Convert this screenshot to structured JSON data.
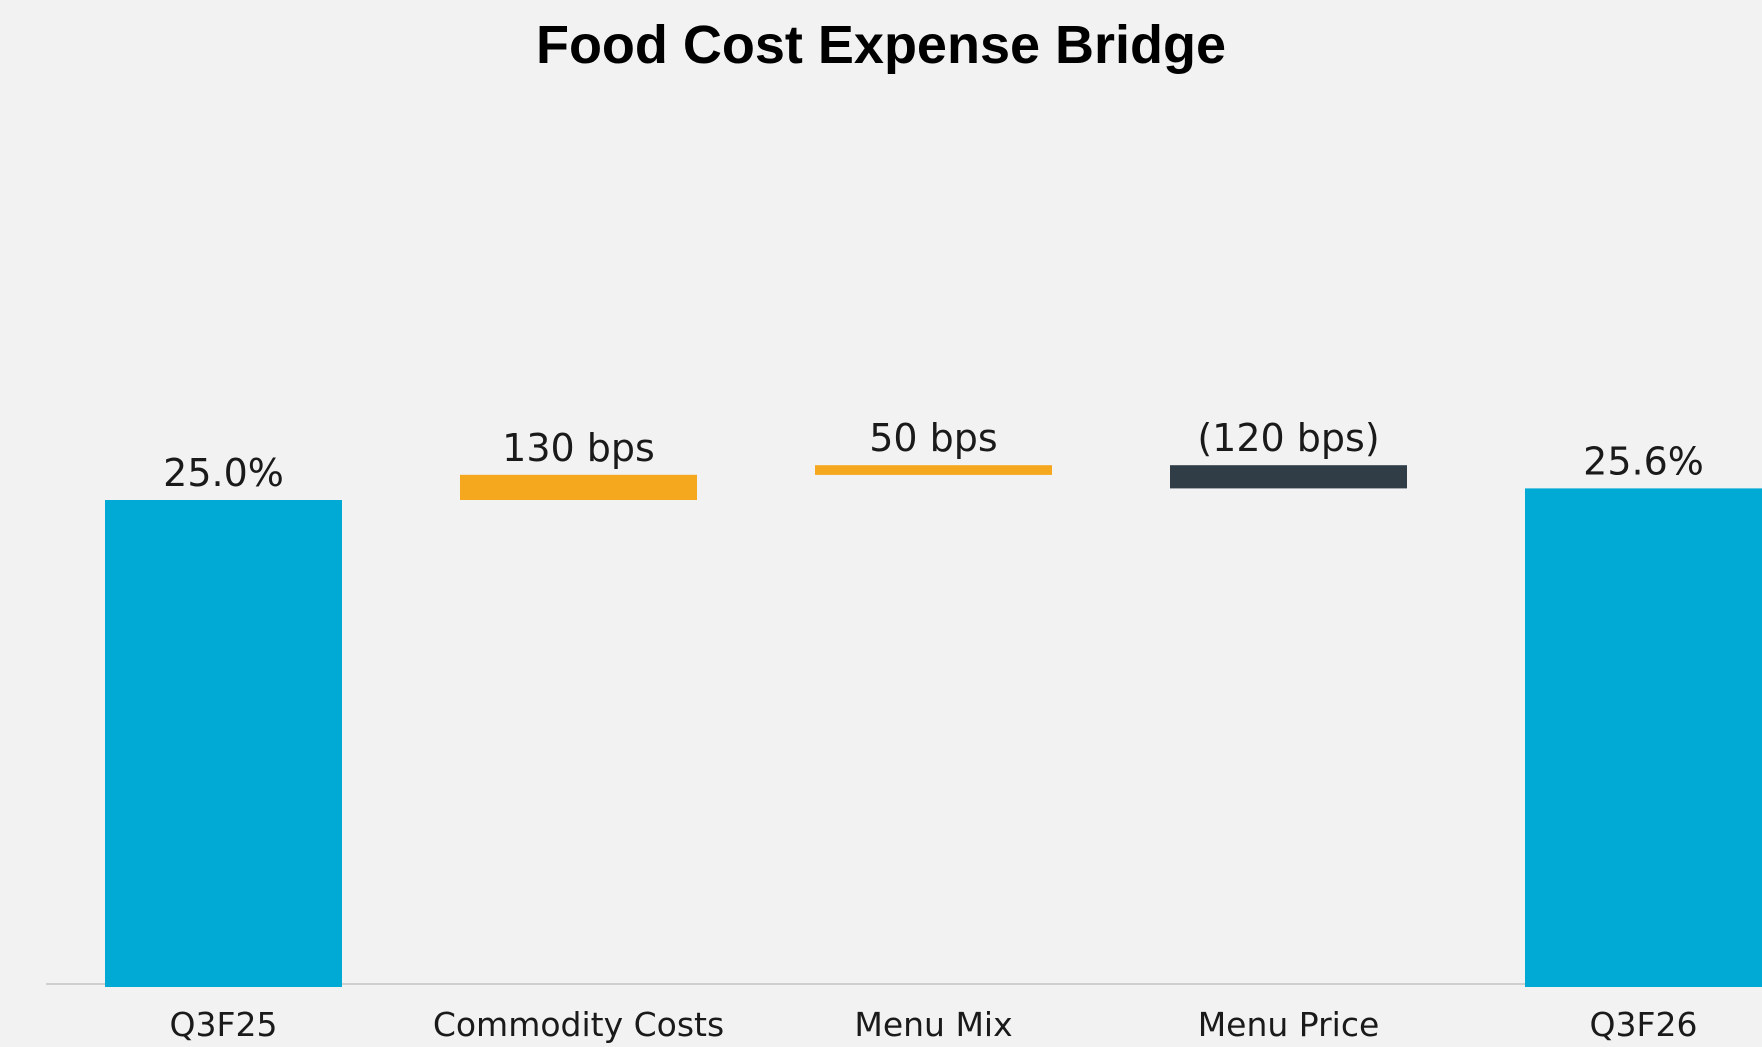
{
  "chart_data": {
    "type": "waterfall",
    "title": "Food Cost Expense Bridge",
    "unit": "%",
    "categories": [
      "Q3F25",
      "Commodity Costs",
      "Menu Mix",
      "Menu Price",
      "Q3F26"
    ],
    "steps": [
      {
        "category": "Q3F25",
        "kind": "total",
        "value": 25.0,
        "label": "25.0%",
        "color": "#00aad4"
      },
      {
        "category": "Commodity Costs",
        "kind": "delta",
        "value": 1.3,
        "label": "130 bps",
        "color": "#f5a81e"
      },
      {
        "category": "Menu Mix",
        "kind": "delta",
        "value": 0.5,
        "label": "50 bps",
        "color": "#f5a81e"
      },
      {
        "category": "Menu Price",
        "kind": "delta",
        "value": -1.2,
        "label": "(120 bps)",
        "color": "#303c46"
      },
      {
        "category": "Q3F26",
        "kind": "total",
        "value": 25.6,
        "label": "25.6%",
        "color": "#00aad4"
      }
    ],
    "baseline": 0,
    "grid": false,
    "legend": "none"
  },
  "colors": {
    "background": "#f2f2f2",
    "axis": "#cfcfcf",
    "total": "#00aad4",
    "increase": "#f5a81e",
    "decrease": "#303c46"
  }
}
